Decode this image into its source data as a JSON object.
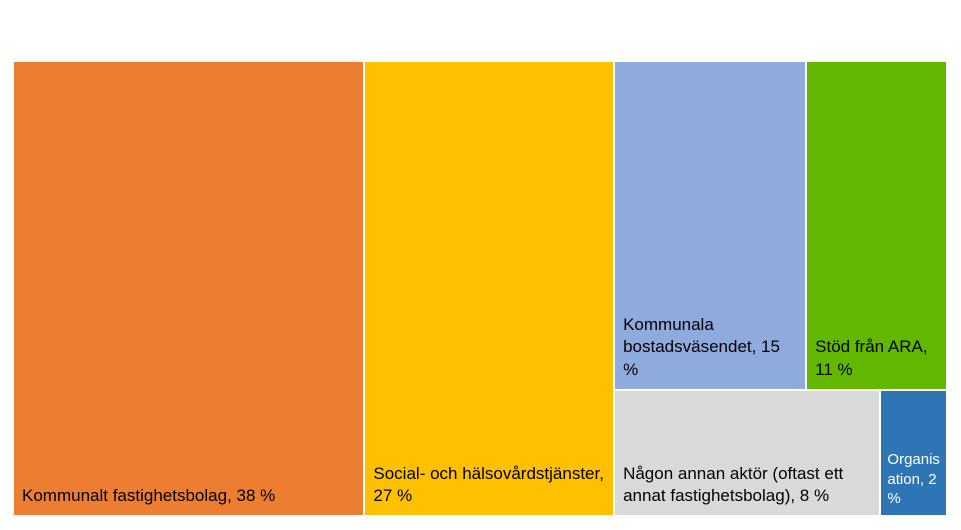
{
  "chart_data": {
    "type": "treemap",
    "labels": [
      "Kommunalt fastighetsbolag, 38 %",
      "Social- och hälsovårdstjänster, 27 %",
      "Kommunala bostadsväsendet, 15 %",
      "Stöd från ARA, 11 %",
      "Någon annan aktör (oftast ett annat fastighetsbolag), 8 %",
      "Organisation, 2 %"
    ],
    "values": [
      38,
      27,
      15,
      11,
      8,
      2
    ],
    "colors": [
      "#ED7D31",
      "#FFC000",
      "#8FAADC",
      "#62B800",
      "#D9D9D9",
      "#2E75B6"
    ]
  }
}
